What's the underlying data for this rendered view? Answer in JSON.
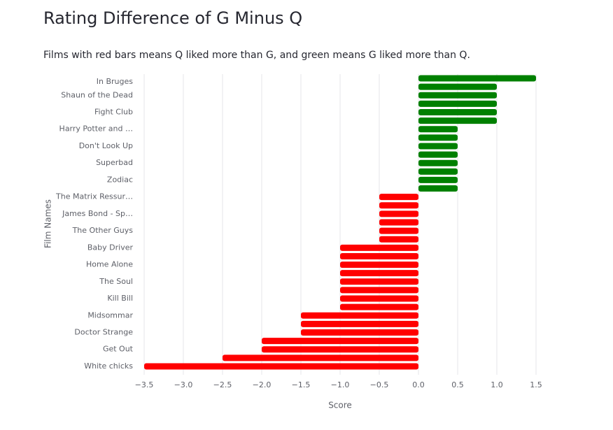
{
  "chart_data": {
    "type": "hbar",
    "title": "Rating Difference of G Minus Q",
    "subtitle": "Films with red bars means Q liked more than G, and green means G liked more than Q.",
    "x_label": "Score",
    "y_label": "Film Names",
    "categories": [
      "In Bruges",
      null,
      "Shaun of the Dead",
      null,
      "Fight Club",
      null,
      "Harry Potter and …",
      null,
      "Don't Look Up",
      null,
      "Superbad",
      null,
      "Zodiac",
      null,
      "The Matrix Ressur…",
      null,
      "James Bond - Sp…",
      null,
      "The Other Guys",
      null,
      "Baby Driver",
      null,
      "Home Alone",
      null,
      "The Soul",
      null,
      "Kill Bill",
      null,
      "Midsommar",
      null,
      "Doctor Strange",
      null,
      "Get Out",
      null,
      "White chicks"
    ],
    "values": [
      1.5,
      1.0,
      1.0,
      1.0,
      1.0,
      1.0,
      0.5,
      0.5,
      0.5,
      0.5,
      0.5,
      0.5,
      0.5,
      0.5,
      -0.5,
      -0.5,
      -0.5,
      -0.5,
      -0.5,
      -0.5,
      -1.0,
      -1.0,
      -1.0,
      -1.0,
      -1.0,
      -1.0,
      -1.0,
      -1.0,
      -1.5,
      -1.5,
      -1.5,
      -2.0,
      -2.0,
      -2.5,
      -3.5
    ],
    "positive_color": "#008000",
    "negative_color": "#ff0000",
    "xlim": [
      -3.5,
      1.5
    ],
    "xticks": [
      {
        "value": -3.5,
        "label": "−3.5"
      },
      {
        "value": -3.0,
        "label": "−3.0"
      },
      {
        "value": -2.5,
        "label": "−2.5"
      },
      {
        "value": -2.0,
        "label": "−2.0"
      },
      {
        "value": -1.5,
        "label": "−1.5"
      },
      {
        "value": -1.0,
        "label": "−1.0"
      },
      {
        "value": -0.5,
        "label": "−0.5"
      },
      {
        "value": 0,
        "label": "0.0"
      },
      {
        "value": 0.5,
        "label": "0.5"
      },
      {
        "value": 1.0,
        "label": "1.0"
      },
      {
        "value": 1.5,
        "label": "1.5"
      }
    ],
    "grid": true
  }
}
